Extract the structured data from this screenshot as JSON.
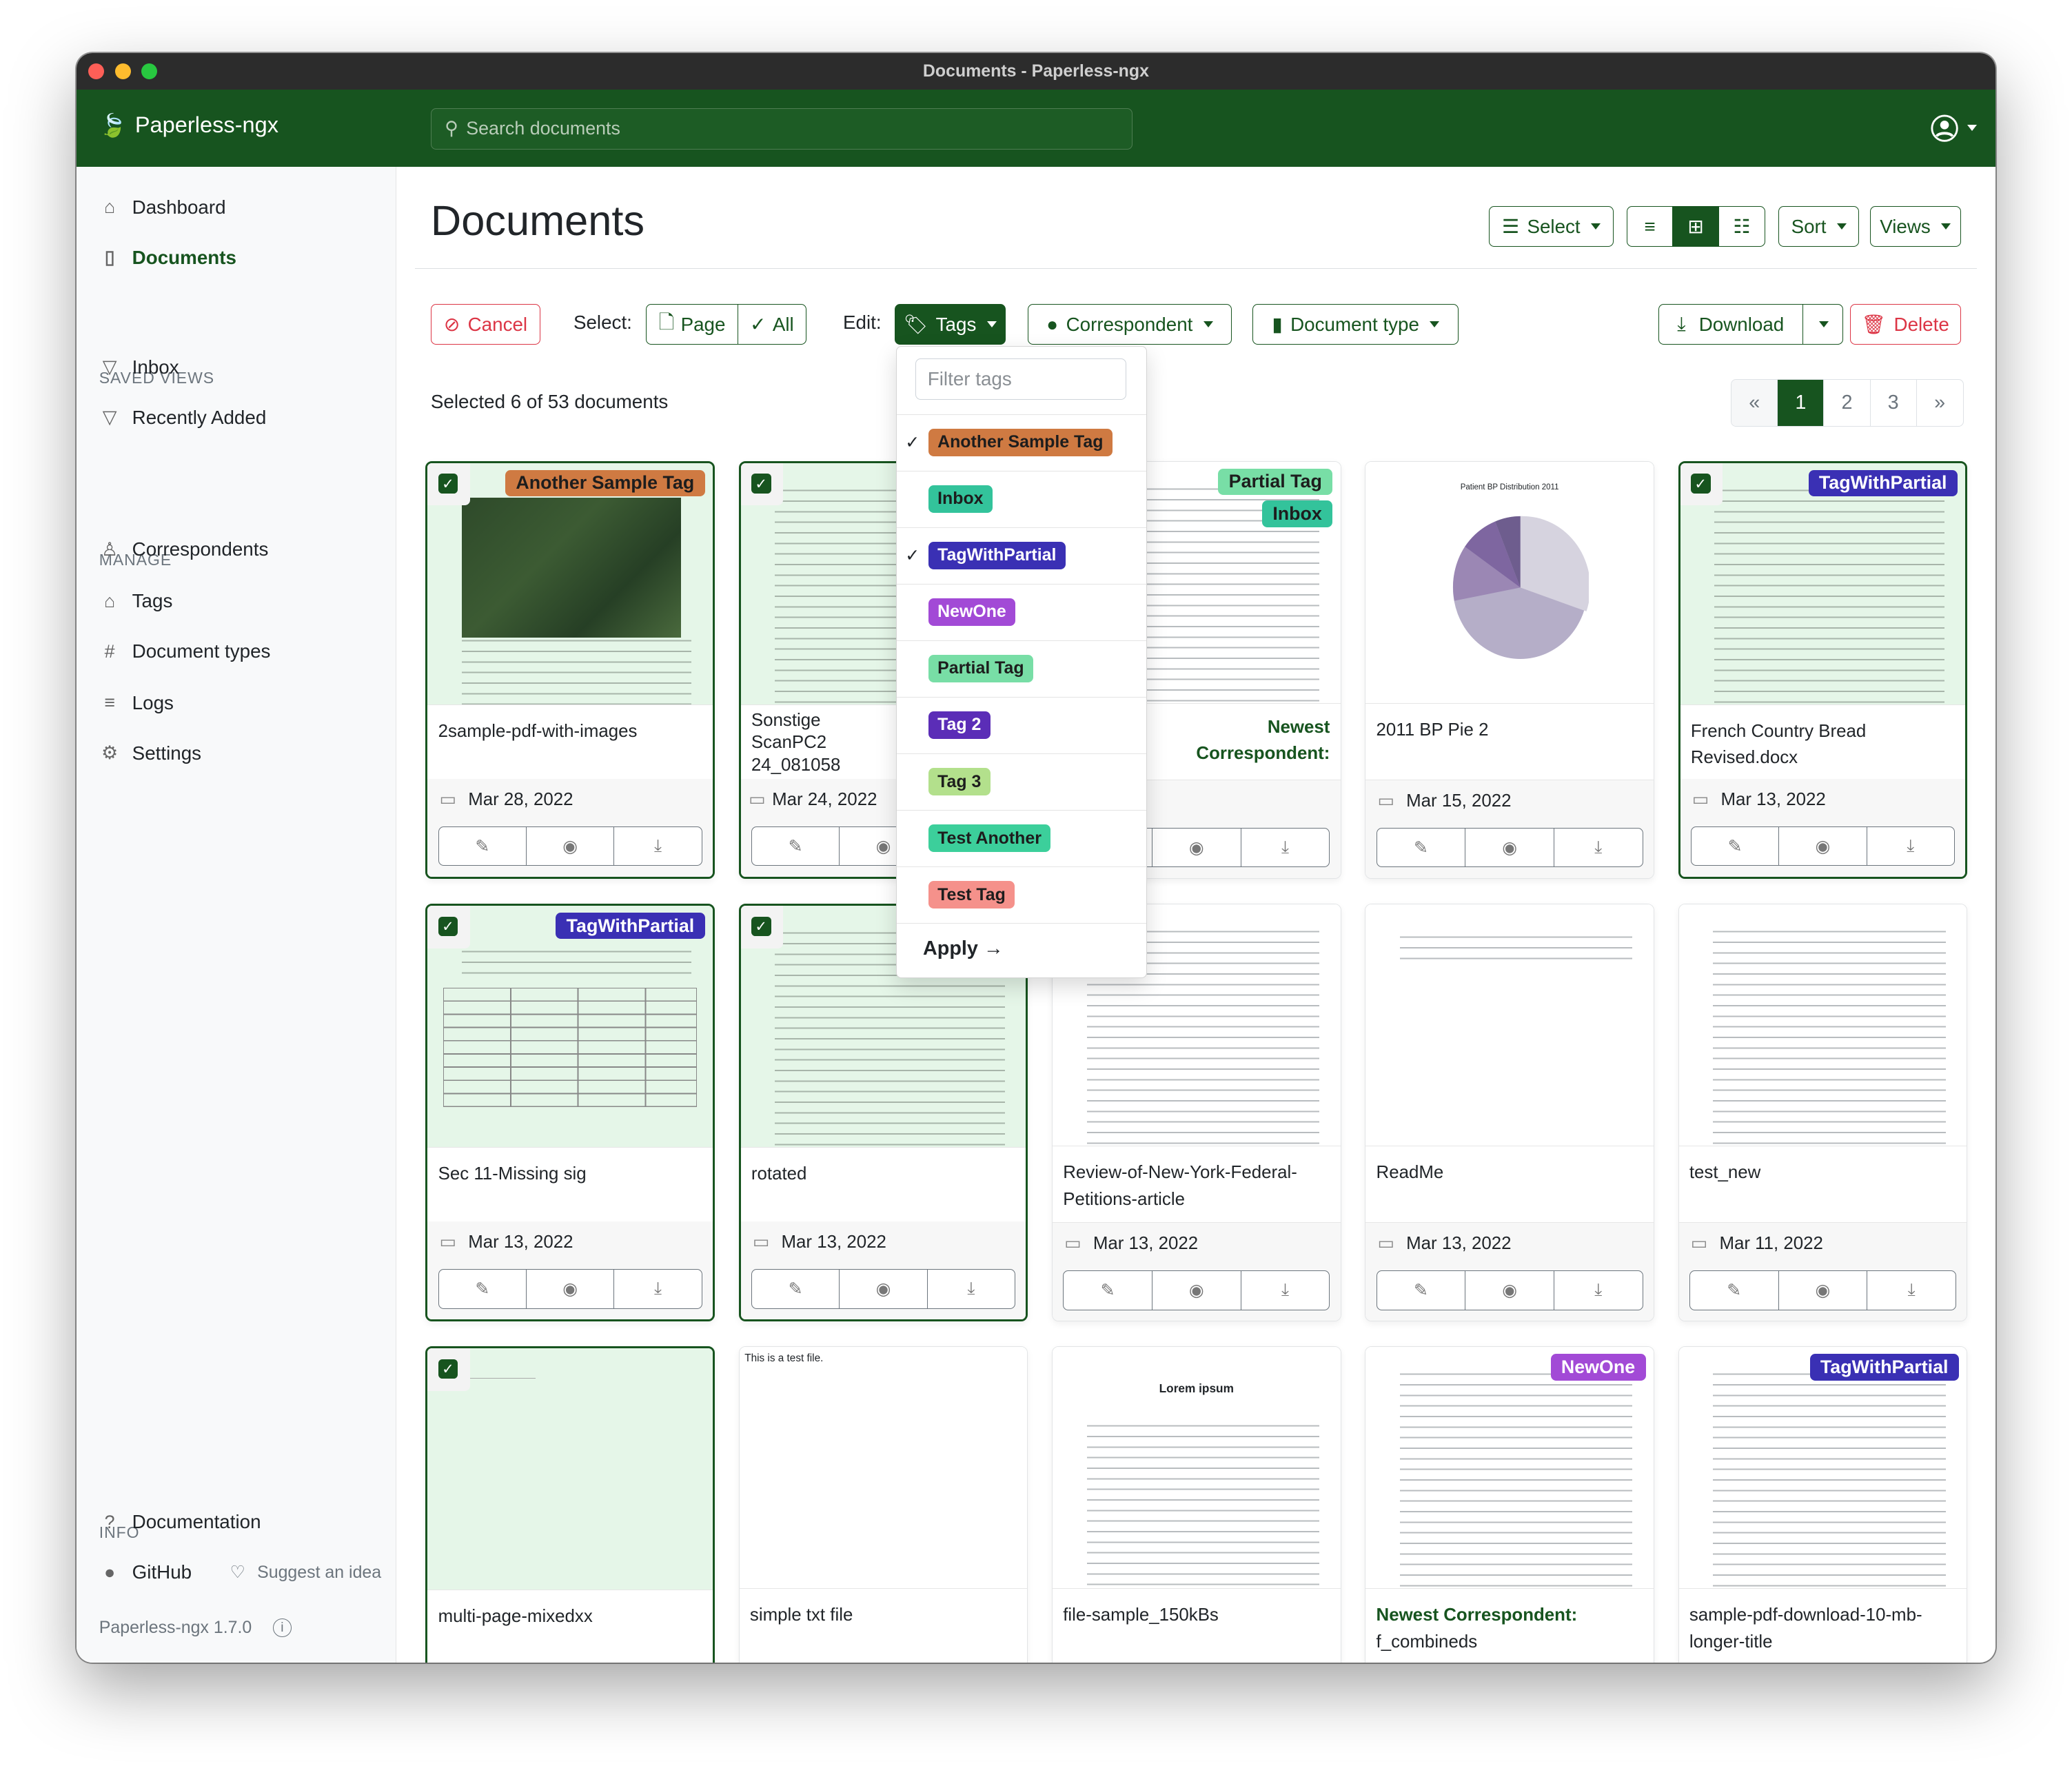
{
  "window": {
    "title": "Documents - Paperless-ngx"
  },
  "header": {
    "app_name": "Paperless-ngx",
    "search_placeholder": "Search documents"
  },
  "sidebar": {
    "items": [
      {
        "label": "Dashboard",
        "icon": "house-icon"
      },
      {
        "label": "Documents",
        "icon": "file-icon",
        "active": true
      }
    ],
    "saved_views_heading": "SAVED VIEWS",
    "saved_views": [
      {
        "label": "Inbox",
        "icon": "funnel-icon"
      },
      {
        "label": "Recently Added",
        "icon": "funnel-icon"
      }
    ],
    "manage_heading": "MANAGE",
    "manage": [
      {
        "label": "Correspondents",
        "icon": "person-icon"
      },
      {
        "label": "Tags",
        "icon": "tag-icon"
      },
      {
        "label": "Document types",
        "icon": "hash-icon"
      },
      {
        "label": "Logs",
        "icon": "list-icon"
      },
      {
        "label": "Settings",
        "icon": "gear-icon"
      }
    ],
    "info_heading": "INFO",
    "info": [
      {
        "label": "Documentation",
        "icon": "question-icon"
      },
      {
        "label": "GitHub",
        "icon": "github-icon"
      }
    ],
    "suggest": "Suggest an idea",
    "version": "Paperless-ngx 1.7.0"
  },
  "page": {
    "title": "Documents",
    "select_label": "Select",
    "sort_label": "Sort",
    "views_label": "Views",
    "active_view": "small-cards"
  },
  "bulk": {
    "cancel": "Cancel",
    "select_label": "Select:",
    "page": "Page",
    "all": "All",
    "edit_label": "Edit:",
    "tags": "Tags",
    "correspondent": "Correspondent",
    "document_type": "Document type",
    "download": "Download",
    "delete": "Delete"
  },
  "selection_status": "Selected 6 of 53 documents",
  "pagination": {
    "prev": "«",
    "pages": [
      "1",
      "2",
      "3"
    ],
    "current": "1",
    "next": "»"
  },
  "tag_dropdown": {
    "filter_placeholder": "Filter tags",
    "items": [
      {
        "label": "Another Sample Tag",
        "color": "#cf7a42",
        "text": "#1d1d1d",
        "checked": true
      },
      {
        "label": "Inbox",
        "color": "#33c39b",
        "text": "#1d1d1d",
        "checked": false
      },
      {
        "label": "TagWithPartial",
        "color": "#3a30b4",
        "text": "#ffffff",
        "checked": true
      },
      {
        "label": "NewOne",
        "color": "#a24ad6",
        "text": "#ffffff",
        "checked": false
      },
      {
        "label": "Partial Tag",
        "color": "#78dea6",
        "text": "#1d1d1d",
        "checked": false
      },
      {
        "label": "Tag 2",
        "color": "#5b2db7",
        "text": "#ffffff",
        "checked": false
      },
      {
        "label": "Tag 3",
        "color": "#b3e08c",
        "text": "#1d1d1d",
        "checked": false
      },
      {
        "label": "Test Another",
        "color": "#3ccf9b",
        "text": "#1d1d1d",
        "checked": false
      },
      {
        "label": "Test Tag",
        "color": "#f5918b",
        "text": "#1d1d1d",
        "checked": false
      }
    ],
    "apply": "Apply →"
  },
  "documents": [
    {
      "title": "2sample-pdf-with-images",
      "date": "Mar 28, 2022",
      "selected": true,
      "tags": [
        "Another Sample Tag"
      ],
      "preview": "map"
    },
    {
      "title": "Sonstige ScanPC2 24_081058",
      "date": "Mar 24, 2022",
      "selected": true,
      "tags": [],
      "preview": "text"
    },
    {
      "correspondent": "Newest Correspondent:",
      "title": "",
      "date": "",
      "selected": false,
      "tags": [
        "Partial Tag",
        "Inbox"
      ],
      "preview": "text"
    },
    {
      "title": "2011 BP Pie 2",
      "date": "Mar 15, 2022",
      "selected": false,
      "tags": [],
      "preview": "pie",
      "preview_title": "Patient BP Distribution 2011"
    },
    {
      "title": "French Country Bread Revised.docx",
      "date": "Mar 13, 2022",
      "selected": true,
      "tags": [
        "TagWithPartial"
      ],
      "preview": "text"
    },
    {
      "title": "Sec 11-Missing sig",
      "date": "Mar 13, 2022",
      "selected": true,
      "tags": [
        "TagWithPartial"
      ],
      "preview": "form"
    },
    {
      "title": "rotated",
      "date": "Mar 13, 2022",
      "selected": true,
      "tags": [],
      "preview": "text"
    },
    {
      "title": "Review-of-New-York-Federal-Petitions-article",
      "date": "Mar 13, 2022",
      "selected": false,
      "tags": [],
      "preview": "text"
    },
    {
      "title": "ReadMe",
      "date": "Mar 13, 2022",
      "selected": false,
      "tags": [],
      "preview": "short"
    },
    {
      "title": "test_new",
      "date": "Mar 11, 2022",
      "selected": false,
      "tags": [],
      "preview": "text"
    },
    {
      "title": "multi-page-mixedxx",
      "date": "",
      "selected": true,
      "tags": [],
      "preview": "blank"
    },
    {
      "title": "simple txt file",
      "date": "",
      "selected": false,
      "tags": [],
      "preview": "blank",
      "preview_text": "This is a test file."
    },
    {
      "title": "file-sample_150kBs",
      "date": "",
      "selected": false,
      "tags": [],
      "preview": "text",
      "preview_title": "Lorem ipsum"
    },
    {
      "correspondent": "Newest Correspondent:",
      "title": "f_combineds",
      "date": "",
      "selected": false,
      "tags": [
        "NewOne"
      ],
      "preview": "text"
    },
    {
      "title": "sample-pdf-download-10-mb-longer-title",
      "date": "",
      "selected": false,
      "tags": [
        "TagWithPartial"
      ],
      "preview": "text"
    }
  ],
  "colors": {
    "primary": "#17541f",
    "danger": "#dc3545",
    "selected_bg": "#e5f6e8"
  }
}
